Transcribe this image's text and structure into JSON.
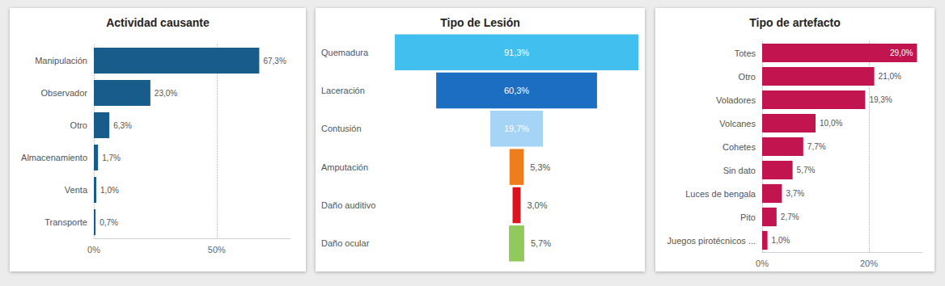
{
  "chart_data": [
    {
      "type": "bar",
      "title": "Actividad causante",
      "orientation": "horizontal",
      "categories": [
        "Manipulación",
        "Observador",
        "Otro",
        "Almacenamiento",
        "Venta",
        "Transporte"
      ],
      "values": [
        67.3,
        23.0,
        6.3,
        1.7,
        1.0,
        0.7
      ],
      "value_labels": [
        "67,3%",
        "23,0%",
        "6,3%",
        "1,7%",
        "1,0%",
        "0,7%"
      ],
      "color": "#175C8A",
      "xlim": [
        0,
        80
      ],
      "xticks": [
        {
          "value": 0,
          "label": "0%"
        },
        {
          "value": 50,
          "label": "50%"
        }
      ],
      "grid": true,
      "data_labels": true
    },
    {
      "type": "funnel",
      "title": "Tipo de Lesión",
      "categories": [
        "Quemadura",
        "Laceración",
        "Contusión",
        "Amputación",
        "Daño auditivo",
        "Daño ocular"
      ],
      "values": [
        91.3,
        60.3,
        19.7,
        5.3,
        3.0,
        5.7
      ],
      "value_labels": [
        "91,3%",
        "60,3%",
        "19,7%",
        "5,3%",
        "3,0%",
        "5,7%"
      ],
      "colors": [
        "#41BFEF",
        "#1C6EC2",
        "#A6D4F7",
        "#EE7D1E",
        "#D9141E",
        "#91C95A"
      ],
      "tick_labels": "y",
      "data_labels": true
    },
    {
      "type": "bar",
      "title": "Tipo de artefacto",
      "orientation": "horizontal",
      "categories": [
        "Totes",
        "Otro",
        "Voladores",
        "Volcanes",
        "Cohetes",
        "Sin dato",
        "Luces de bengala",
        "Pito",
        "Juegos pirotécnicos ..."
      ],
      "values": [
        29.0,
        21.0,
        19.3,
        10.0,
        7.7,
        5.7,
        3.7,
        2.7,
        1.0
      ],
      "value_labels": [
        "29,0%",
        "21,0%",
        "19,3%",
        "10,0%",
        "7,7%",
        "5,7%",
        "3,7%",
        "2,7%",
        "1,0%"
      ],
      "color": "#C2154F",
      "xlim": [
        0,
        30
      ],
      "xticks": [
        {
          "value": 0,
          "label": "0%"
        },
        {
          "value": 20,
          "label": "20%"
        }
      ],
      "grid": true,
      "data_labels": true
    }
  ]
}
